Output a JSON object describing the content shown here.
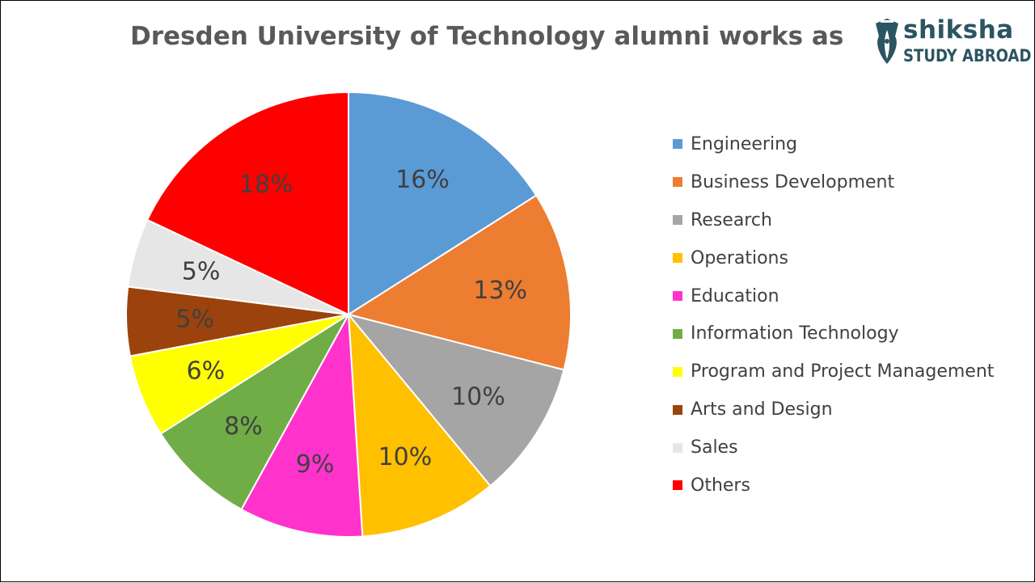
{
  "logo": {
    "word": "shiksha",
    "sub": "STUDY ABROAD",
    "icon": "pen-nib-icon",
    "color": "#2b5560"
  },
  "chart_data": {
    "type": "pie",
    "title": "Dresden University of Technology alumni works as",
    "start_angle_deg": 0,
    "direction": "clockwise",
    "legend_position": "right",
    "slices": [
      {
        "label": "Engineering",
        "value": 16,
        "display": "16%",
        "color": "#5b9bd5"
      },
      {
        "label": "Business Development",
        "value": 13,
        "display": "13%",
        "color": "#ed7d31"
      },
      {
        "label": "Research",
        "value": 10,
        "display": "10%",
        "color": "#a5a5a5"
      },
      {
        "label": "Operations",
        "value": 10,
        "display": "10%",
        "color": "#ffc000"
      },
      {
        "label": "Education",
        "value": 9,
        "display": "9%",
        "color": "#ff33cc"
      },
      {
        "label": "Information Technology",
        "value": 8,
        "display": "8%",
        "color": "#70ad47"
      },
      {
        "label": "Program and Project Management",
        "value": 6,
        "display": "6%",
        "color": "#ffff00"
      },
      {
        "label": "Arts and Design",
        "value": 5,
        "display": "5%",
        "color": "#9c420c"
      },
      {
        "label": "Sales",
        "value": 5,
        "display": "5%",
        "color": "#e7e6e6"
      },
      {
        "label": "Others",
        "value": 18,
        "display": "18%",
        "color": "#ff0000"
      }
    ]
  }
}
